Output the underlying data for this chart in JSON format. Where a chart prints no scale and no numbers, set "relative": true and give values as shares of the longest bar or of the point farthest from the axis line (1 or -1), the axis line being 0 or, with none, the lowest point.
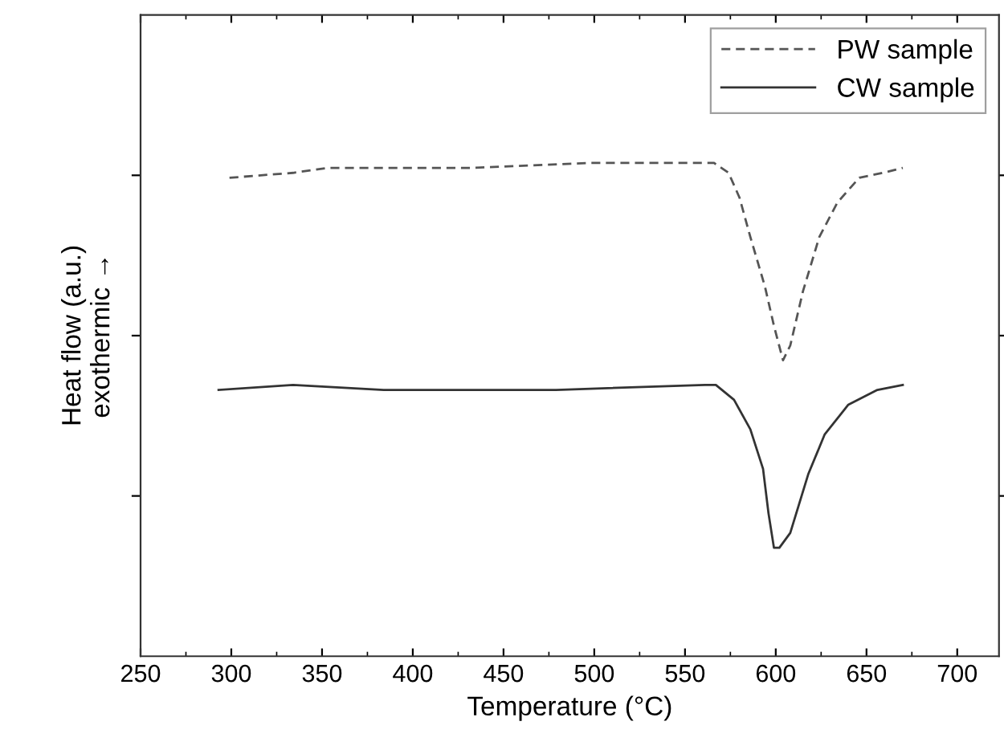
{
  "chart_data": {
    "type": "line",
    "xlabel": "Temperature (°C)",
    "ylabel": "Heat flow (a.u.)\nexothermic →",
    "relative": true,
    "xlim": [
      250,
      723
    ],
    "xticks": [
      250,
      300,
      350,
      400,
      450,
      500,
      550,
      600,
      650,
      700
    ],
    "legend": "top right",
    "grid": false,
    "series": [
      {
        "name": "PW sample",
        "color": "#555555",
        "line_style": "dashed",
        "x": [
          299,
          334,
          353,
          375,
          432,
          498,
          536,
          566,
          574,
          580,
          586,
          594,
          599,
          604,
          608,
          615,
          624,
          634,
          646,
          659,
          670
        ],
        "values": [
          0.97,
          0.98,
          0.99,
          0.99,
          0.99,
          1.0,
          1.0,
          1.0,
          0.98,
          0.93,
          0.85,
          0.75,
          0.67,
          0.6,
          0.63,
          0.74,
          0.85,
          0.92,
          0.97,
          0.98,
          0.99
        ]
      },
      {
        "name": "CW sample",
        "color": "#333333",
        "line_style": "solid",
        "x": [
          293,
          334,
          384,
          479,
          561,
          567,
          577,
          586,
          593,
          596,
          599,
          602,
          608,
          618,
          627,
          640,
          656,
          670
        ],
        "values": [
          0.54,
          0.55,
          0.54,
          0.54,
          0.55,
          0.55,
          0.52,
          0.46,
          0.38,
          0.29,
          0.22,
          0.22,
          0.25,
          0.37,
          0.45,
          0.51,
          0.54,
          0.55
        ]
      }
    ]
  }
}
